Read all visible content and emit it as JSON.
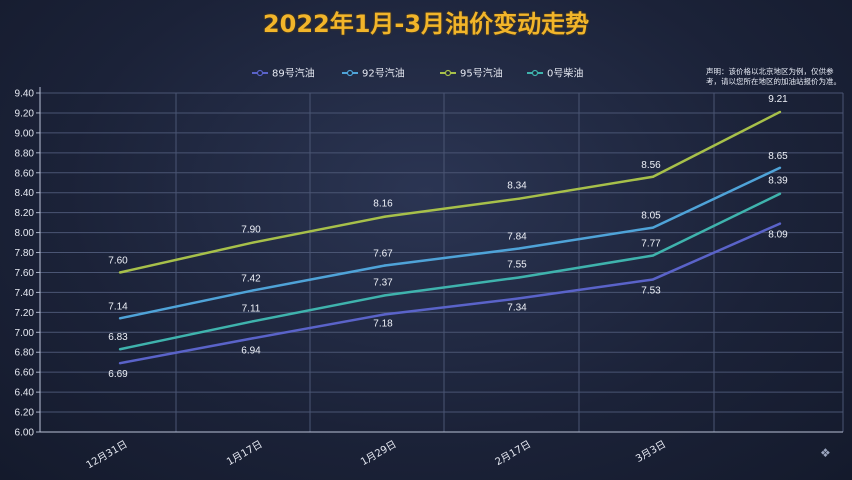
{
  "chart_data": {
    "type": "line",
    "title": "2022年1月-3月油价变动走势",
    "note": "声明：该价格以北京地区为例，仅供参考，请以您所在地区的加油站报价为准。",
    "categories": [
      "12月31日",
      "1月17日",
      "1月29日",
      "2月17日",
      "3月3日",
      ""
    ],
    "x_label_index": [
      0,
      1,
      2,
      3,
      4
    ],
    "ylim": [
      6.0,
      9.4
    ],
    "ystep": 0.2,
    "grid": true,
    "legend_position": "top",
    "series": [
      {
        "name": "89号汽油",
        "color": "#5a63c9",
        "values": [
          6.69,
          6.94,
          7.18,
          7.34,
          7.53,
          8.09
        ],
        "labels": [
          "6.69",
          "6.94",
          "7.18",
          "7.34",
          "7.53",
          "8.09"
        ]
      },
      {
        "name": "92号汽油",
        "color": "#4fa3d8",
        "values": [
          7.14,
          7.42,
          7.67,
          7.84,
          8.05,
          8.65
        ],
        "labels": [
          "7.14",
          "7.42",
          "7.67",
          "7.84",
          "8.05",
          "8.65"
        ]
      },
      {
        "name": "95号汽油",
        "color": "#a7c04a",
        "values": [
          7.6,
          7.9,
          8.16,
          8.34,
          8.56,
          9.21
        ],
        "labels": [
          "7.60",
          "7.90",
          "8.16",
          "8.34",
          "8.56",
          "9.21"
        ]
      },
      {
        "name": "0号柴油",
        "color": "#3fb3ad",
        "values": [
          6.83,
          7.11,
          7.37,
          7.55,
          7.77,
          8.39
        ],
        "labels": [
          "6.83",
          "7.11",
          "7.37",
          "7.55",
          "7.77",
          "8.39"
        ]
      }
    ]
  }
}
